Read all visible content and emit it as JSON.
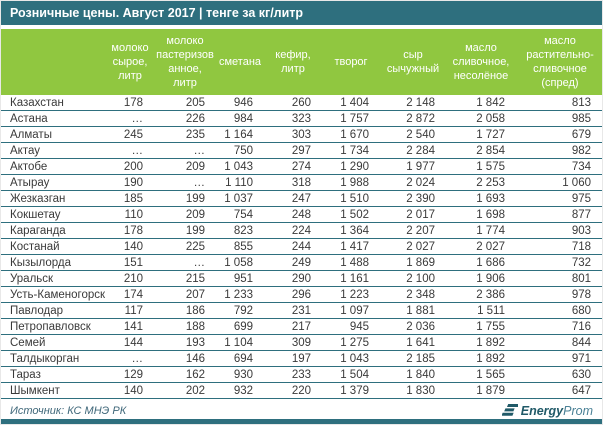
{
  "title": "Розничные цены. Август 2017 | тенге за кг/литр",
  "colors": {
    "header_bar": "#2E6F7E",
    "table_header_green": "#90C740",
    "row_line": "#2E6F7E",
    "logo_dark": "#215A68",
    "logo_light": "#4A8196"
  },
  "chart_data": {
    "type": "table",
    "title": "Розничные цены. Август 2017 | тенге за кг/литр",
    "units": "тенге за кг/литр",
    "columns": [
      "",
      "молоко сырое, литр",
      "молоко пастеризованное, литр",
      "сметана",
      "кефир, литр",
      "творог",
      "сыр сычужный",
      "масло сливочное, несолёное",
      "масло растительно-сливочное (спред)"
    ],
    "rows": [
      [
        "Казахстан",
        "178",
        "205",
        "946",
        "260",
        "1 404",
        "2 148",
        "1 842",
        "813"
      ],
      [
        "Астана",
        "…",
        "226",
        "984",
        "323",
        "1 757",
        "2 872",
        "2 058",
        "985"
      ],
      [
        "Алматы",
        "245",
        "235",
        "1 164",
        "303",
        "1 670",
        "2 540",
        "1 727",
        "679"
      ],
      [
        "Актау",
        "…",
        "…",
        "750",
        "297",
        "1 734",
        "2 284",
        "2 854",
        "982"
      ],
      [
        "Актобе",
        "200",
        "209",
        "1 043",
        "274",
        "1 290",
        "1 977",
        "1 575",
        "734"
      ],
      [
        "Атырау",
        "190",
        "…",
        "1 110",
        "318",
        "1 988",
        "2 024",
        "2 253",
        "1 060"
      ],
      [
        "Жезказган",
        "185",
        "199",
        "1 037",
        "247",
        "1 510",
        "2 390",
        "1 693",
        "975"
      ],
      [
        "Кокшетау",
        "110",
        "209",
        "754",
        "248",
        "1 502",
        "2 017",
        "1 698",
        "877"
      ],
      [
        "Караганда",
        "178",
        "199",
        "823",
        "224",
        "1 364",
        "2 207",
        "1 774",
        "903"
      ],
      [
        "Костанай",
        "140",
        "225",
        "855",
        "244",
        "1 417",
        "2 027",
        "2 027",
        "718"
      ],
      [
        "Кызылорда",
        "151",
        "…",
        "1 058",
        "249",
        "1 488",
        "1 869",
        "1 686",
        "732"
      ],
      [
        "Уральск",
        "210",
        "215",
        "951",
        "290",
        "1 161",
        "2 100",
        "1 906",
        "801"
      ],
      [
        "Усть-Каменогорск",
        "174",
        "207",
        "1 233",
        "296",
        "1 223",
        "2 348",
        "2 386",
        "978"
      ],
      [
        "Павлодар",
        "117",
        "186",
        "792",
        "231",
        "1 097",
        "1 881",
        "1 511",
        "680"
      ],
      [
        "Петропавловск",
        "141",
        "188",
        "699",
        "217",
        "945",
        "2 036",
        "1 755",
        "716"
      ],
      [
        "Семей",
        "144",
        "193",
        "1 104",
        "309",
        "1 275",
        "1 641",
        "1 892",
        "844"
      ],
      [
        "Талдыкорган",
        "…",
        "146",
        "694",
        "197",
        "1 043",
        "2 185",
        "1 892",
        "971"
      ],
      [
        "Тараз",
        "129",
        "162",
        "930",
        "233",
        "1 504",
        "1 840",
        "1 565",
        "630"
      ],
      [
        "Шымкент",
        "140",
        "202",
        "932",
        "220",
        "1 379",
        "1 830",
        "1 879",
        "647"
      ]
    ]
  },
  "footer": {
    "source": "Источник: КС МНЭ РК",
    "logo_energy": "Energy",
    "logo_prom": "Prom"
  }
}
